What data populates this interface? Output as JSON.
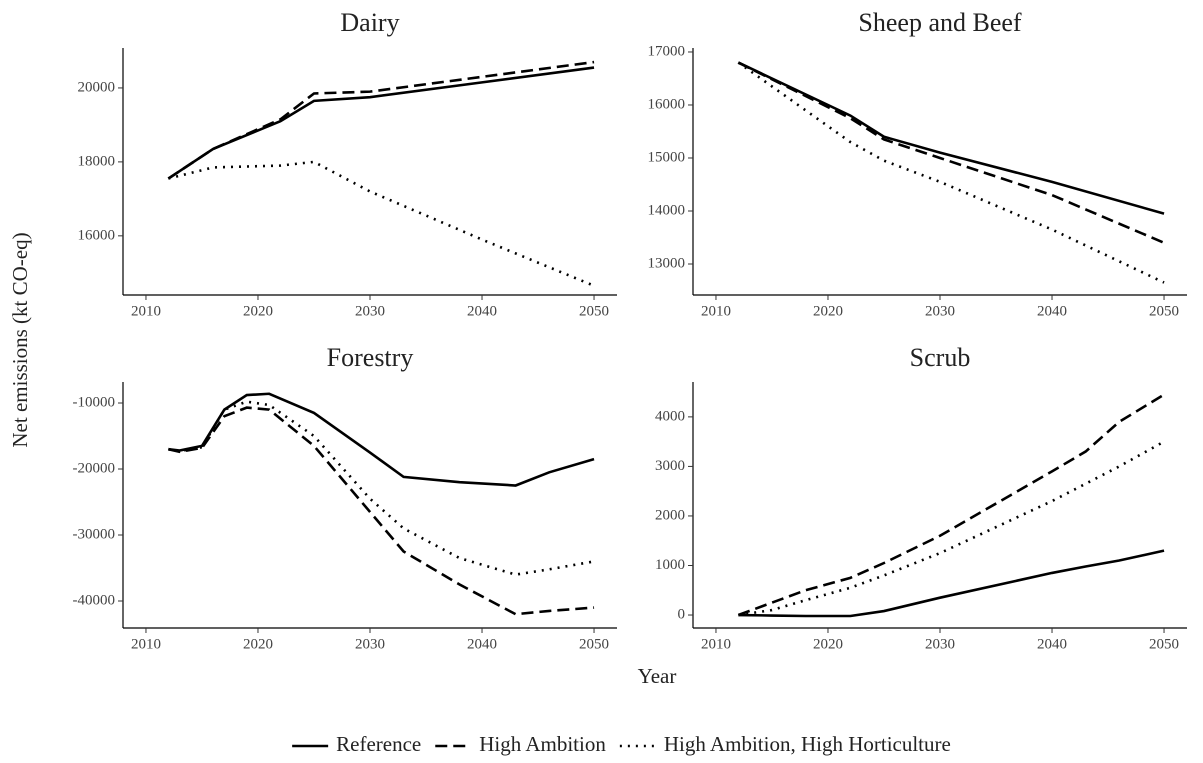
{
  "xlabel": "Year",
  "ylabel": "Net emissions (kt CO-eq)",
  "chart_data": [
    {
      "type": "line",
      "title": "Dairy",
      "x": [
        2012,
        2016,
        2022,
        2025,
        2030,
        2040,
        2050
      ],
      "xlim": [
        2007.95,
        2052.05
      ],
      "xticks": [
        2010,
        2020,
        2030,
        2040,
        2050
      ],
      "ylim": [
        14400,
        21080
      ],
      "yticks": [
        16000,
        18000,
        20000
      ],
      "grid": false,
      "series": [
        {
          "name": "Reference",
          "color": "#000000",
          "dash": "solid",
          "values": [
            17550,
            18350,
            19100,
            19650,
            19750,
            20150,
            20550
          ]
        },
        {
          "name": "High Ambition",
          "color": "#000000",
          "dash": "dashed",
          "values": [
            17550,
            18350,
            19150,
            19850,
            19900,
            20300,
            20700
          ]
        },
        {
          "name": "High Ambition, High Horticulture",
          "color": "#000000",
          "dash": "dotted",
          "values": [
            17550,
            17850,
            17900,
            18000,
            17200,
            15900,
            14650
          ]
        }
      ]
    },
    {
      "type": "line",
      "title": "Sheep and Beef",
      "x": [
        2012,
        2022,
        2025,
        2030,
        2040,
        2050
      ],
      "xlim": [
        2007.95,
        2052.05
      ],
      "xticks": [
        2010,
        2020,
        2030,
        2040,
        2050
      ],
      "ylim": [
        12415,
        17075
      ],
      "yticks": [
        13000,
        14000,
        15000,
        16000,
        17000
      ],
      "grid": false,
      "series": [
        {
          "name": "Reference",
          "color": "#000000",
          "dash": "solid",
          "values": [
            16800,
            15800,
            15400,
            15100,
            14550,
            13950
          ]
        },
        {
          "name": "High Ambition",
          "color": "#000000",
          "dash": "dashed",
          "values": [
            16800,
            15750,
            15350,
            15000,
            14300,
            13400
          ]
        },
        {
          "name": "High Ambition, High Horticulture",
          "color": "#000000",
          "dash": "dotted",
          "values": [
            16800,
            15300,
            14950,
            14550,
            13650,
            12650
          ]
        }
      ]
    },
    {
      "type": "line",
      "title": "Forestry",
      "x": [
        2012,
        2013,
        2015,
        2017,
        2019,
        2021,
        2025,
        2030,
        2033,
        2038,
        2043,
        2046,
        2050
      ],
      "xlim": [
        2007.95,
        2052.05
      ],
      "xticks": [
        2010,
        2020,
        2030,
        2040,
        2050
      ],
      "ylim": [
        -44090,
        -6818
      ],
      "yticks": [
        -40000,
        -30000,
        -20000,
        -10000
      ],
      "grid": false,
      "series": [
        {
          "name": "Reference",
          "color": "#000000",
          "dash": "solid",
          "values": [
            -17000,
            -17200,
            -16500,
            -11000,
            -8800,
            -8600,
            -11500,
            -17500,
            -21200,
            -22000,
            -22500,
            -20500,
            -18500
          ]
        },
        {
          "name": "High Ambition",
          "color": "#000000",
          "dash": "dashed",
          "values": [
            -17000,
            -17400,
            -16800,
            -12000,
            -10700,
            -11000,
            -16500,
            -26500,
            -32500,
            -37500,
            -42000,
            -41500,
            -41000
          ]
        },
        {
          "name": "High Ambition, High Horticulture",
          "color": "#000000",
          "dash": "dotted",
          "values": [
            -17000,
            -17300,
            -16700,
            -11000,
            -9800,
            -10300,
            -15000,
            -24500,
            -29000,
            -33500,
            -36000,
            -35200,
            -34000
          ]
        }
      ]
    },
    {
      "type": "line",
      "title": "Scrub",
      "x": [
        2012,
        2015,
        2018,
        2022,
        2025,
        2030,
        2040,
        2043,
        2046,
        2050
      ],
      "xlim": [
        2007.95,
        2052.05
      ],
      "xticks": [
        2010,
        2020,
        2030,
        2040,
        2050
      ],
      "ylim": [
        -262,
        4704
      ],
      "yticks": [
        0,
        1000,
        2000,
        3000,
        4000
      ],
      "grid": false,
      "series": [
        {
          "name": "Reference",
          "color": "#000000",
          "dash": "solid",
          "values": [
            0,
            -10,
            -20,
            -20,
            80,
            350,
            850,
            980,
            1100,
            1300
          ]
        },
        {
          "name": "High Ambition",
          "color": "#000000",
          "dash": "dashed",
          "values": [
            0,
            250,
            500,
            750,
            1050,
            1600,
            2900,
            3300,
            3900,
            4450
          ]
        },
        {
          "name": "High Ambition, High Horticulture",
          "color": "#000000",
          "dash": "dotted",
          "values": [
            0,
            100,
            300,
            550,
            800,
            1250,
            2300,
            2650,
            3000,
            3500
          ]
        }
      ]
    }
  ]
}
